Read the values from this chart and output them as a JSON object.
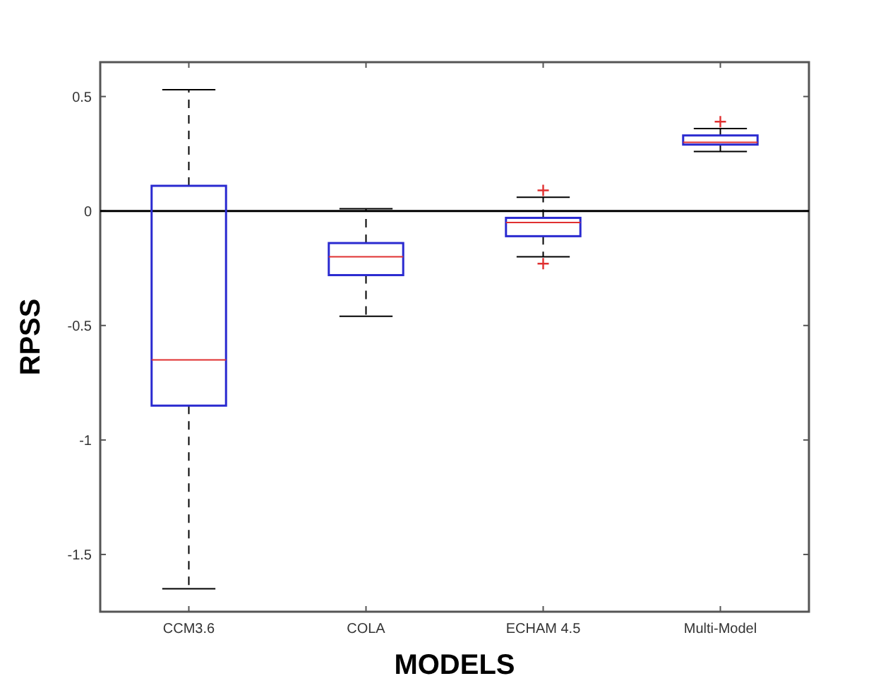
{
  "chart_data": {
    "type": "box",
    "xlabel": "MODELS",
    "ylabel": "RPSS",
    "categories": [
      "CCM3.6",
      "COLA",
      "ECHAM 4.5",
      "Multi-Model"
    ],
    "boxes": [
      {
        "low": -1.65,
        "q1": -0.85,
        "median": -0.65,
        "q3": 0.11,
        "high": 0.53
      },
      {
        "low": -0.46,
        "q1": -0.28,
        "median": -0.2,
        "q3": -0.14,
        "high": 0.01
      },
      {
        "low": -0.2,
        "q1": -0.11,
        "median": -0.05,
        "q3": -0.03,
        "high": 0.06,
        "outliers": [
          0.09,
          -0.23
        ]
      },
      {
        "low": 0.26,
        "q1": 0.29,
        "median": 0.3,
        "q3": 0.33,
        "high": 0.36,
        "outliers": [
          0.39
        ]
      }
    ],
    "color": "#2a2ad0",
    "line_style": "dashed",
    "ylim": [
      -1.75,
      0.65
    ],
    "yticks": [
      {
        "value": -1.5,
        "label": "-1.5"
      },
      {
        "value": -1,
        "label": "-1"
      },
      {
        "value": -0.5,
        "label": "-0.5"
      },
      0,
      0.5
    ],
    "ref_lines": [
      {
        "axis": "y",
        "value": 0,
        "color": "#000000"
      }
    ],
    "grid": false
  }
}
